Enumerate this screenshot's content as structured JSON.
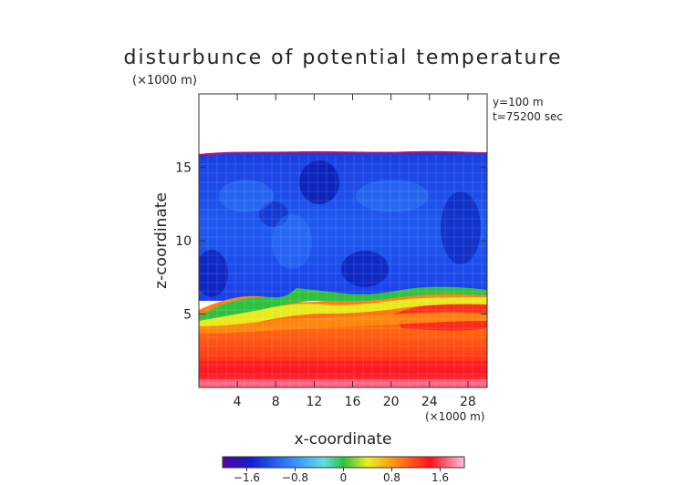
{
  "chart_data": {
    "type": "heatmap",
    "title": "disturbunce of potential temperature",
    "unit_label": "(×1000 m)",
    "annotations": [
      "y=100 m",
      "t=75200 sec"
    ],
    "xlabel": "x-coordinate",
    "ylabel": "z-coordinate",
    "x_unit": "(×1000 m)",
    "xlim": [
      0,
      30
    ],
    "ylim": [
      0,
      20
    ],
    "xticks": [
      4,
      8,
      12,
      16,
      20,
      24,
      28
    ],
    "yticks": [
      5,
      10,
      15
    ],
    "colorbar": {
      "ticks": [
        -1.6,
        -0.8,
        0,
        0.8,
        1.6
      ],
      "tick_labels": [
        "−1.6",
        "−0.8",
        "0",
        "0.8",
        "1.6"
      ],
      "range": [
        -2.0,
        2.0
      ]
    },
    "field": {
      "upper_boundary_z": 16,
      "inversion_layer_z": [
        5,
        7
      ],
      "upper_region_value": -1.1,
      "lower_region_value": 1.3,
      "surface_value": 1.9
    }
  }
}
